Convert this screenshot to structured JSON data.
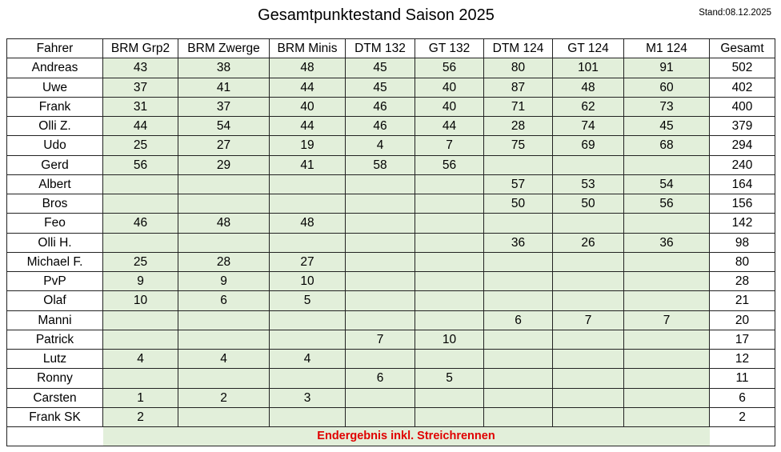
{
  "title": "Gesamtpunktestand Saison 2025",
  "stand": "Stand:08.12.2025",
  "colors": {
    "cell_fill": "#e2efda",
    "note": "#e00000"
  },
  "table": {
    "headers": [
      "Fahrer",
      "BRM Grp2",
      "BRM Zwerge",
      "BRM Minis",
      "DTM 132",
      "GT 132",
      "DTM 124",
      "GT 124",
      "M1 124",
      "Gesamt"
    ],
    "rows": [
      [
        "Andreas",
        "43",
        "38",
        "48",
        "45",
        "56",
        "80",
        "101",
        "91",
        "502"
      ],
      [
        "Uwe",
        "37",
        "41",
        "44",
        "45",
        "40",
        "87",
        "48",
        "60",
        "402"
      ],
      [
        "Frank",
        "31",
        "37",
        "40",
        "46",
        "40",
        "71",
        "62",
        "73",
        "400"
      ],
      [
        "Olli Z.",
        "44",
        "54",
        "44",
        "46",
        "44",
        "28",
        "74",
        "45",
        "379"
      ],
      [
        "Udo",
        "25",
        "27",
        "19",
        "4",
        "7",
        "75",
        "69",
        "68",
        "294"
      ],
      [
        "Gerd",
        "56",
        "29",
        "41",
        "58",
        "56",
        "",
        "",
        "",
        "240"
      ],
      [
        "Albert",
        "",
        "",
        "",
        "",
        "",
        "57",
        "53",
        "54",
        "164"
      ],
      [
        "Bros",
        "",
        "",
        "",
        "",
        "",
        "50",
        "50",
        "56",
        "156"
      ],
      [
        "Feo",
        "46",
        "48",
        "48",
        "",
        "",
        "",
        "",
        "",
        "142"
      ],
      [
        "Olli H.",
        "",
        "",
        "",
        "",
        "",
        "36",
        "26",
        "36",
        "98"
      ],
      [
        "Michael F.",
        "25",
        "28",
        "27",
        "",
        "",
        "",
        "",
        "",
        "80"
      ],
      [
        "PvP",
        "9",
        "9",
        "10",
        "",
        "",
        "",
        "",
        "",
        "28"
      ],
      [
        "Olaf",
        "10",
        "6",
        "5",
        "",
        "",
        "",
        "",
        "",
        "21"
      ],
      [
        "Manni",
        "",
        "",
        "",
        "",
        "",
        "6",
        "7",
        "7",
        "20"
      ],
      [
        "Patrick",
        "",
        "",
        "",
        "7",
        "10",
        "",
        "",
        "",
        "17"
      ],
      [
        "Lutz",
        "4",
        "4",
        "4",
        "",
        "",
        "",
        "",
        "",
        "12"
      ],
      [
        "Ronny",
        "",
        "",
        "",
        "6",
        "5",
        "",
        "",
        "",
        "11"
      ],
      [
        "Carsten",
        "1",
        "2",
        "3",
        "",
        "",
        "",
        "",
        "",
        "6"
      ],
      [
        "Frank SK",
        "2",
        "",
        "",
        "",
        "",
        "",
        "",
        "",
        "2"
      ]
    ],
    "footer_note": "Endergebnis inkl. Streichrennen"
  }
}
